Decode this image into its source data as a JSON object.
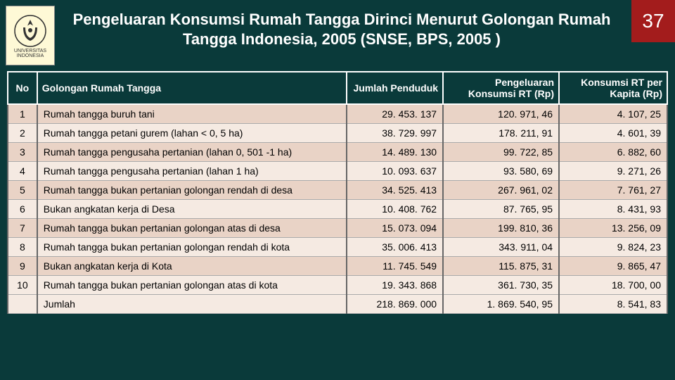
{
  "header": {
    "logo_top": "UNIVERSITAS",
    "logo_bottom": "INDONESIA",
    "title": "Pengeluaran Konsumsi Rumah Tangga Dirinci Menurut Golongan Rumah Tangga Indonesia, 2005 (SNSE, BPS, 2005 )",
    "page_number": "37"
  },
  "table": {
    "columns": [
      "No",
      "Golongan Rumah Tangga",
      "Jumlah Penduduk",
      "Pengeluaran Konsumsi RT (Rp)",
      "Konsumsi RT per Kapita (Rp)"
    ],
    "rows": [
      {
        "no": "1",
        "desc": "Rumah tangga buruh tani",
        "pop": "29. 453. 137",
        "exp": "120. 971, 46",
        "cap": "4. 107, 25"
      },
      {
        "no": "2",
        "desc": "Rumah tangga petani gurem (lahan < 0, 5 ha)",
        "pop": "38. 729. 997",
        "exp": "178. 211, 91",
        "cap": "4. 601, 39"
      },
      {
        "no": "3",
        "desc": "Rumah tangga pengusaha pertanian (lahan 0, 501 -1 ha)",
        "pop": "14. 489. 130",
        "exp": "99. 722, 85",
        "cap": "6. 882, 60"
      },
      {
        "no": "4",
        "desc": "Rumah tangga pengusaha pertanian (lahan 1 ha)",
        "pop": "10. 093. 637",
        "exp": "93. 580, 69",
        "cap": "9. 271, 26"
      },
      {
        "no": "5",
        "desc": "Rumah tangga bukan pertanian golongan rendah di desa",
        "pop": "34. 525. 413",
        "exp": "267. 961, 02",
        "cap": "7. 761, 27"
      },
      {
        "no": "6",
        "desc": "Bukan angkatan kerja di Desa",
        "pop": "10. 408. 762",
        "exp": "87. 765, 95",
        "cap": "8. 431, 93"
      },
      {
        "no": "7",
        "desc": "Rumah tangga bukan pertanian golongan atas di desa",
        "pop": "15. 073. 094",
        "exp": "199. 810, 36",
        "cap": "13. 256, 09"
      },
      {
        "no": "8",
        "desc": "Rumah tangga bukan pertanian golongan rendah di kota",
        "pop": "35. 006. 413",
        "exp": "343. 911, 04",
        "cap": "9. 824, 23"
      },
      {
        "no": "9",
        "desc": "Bukan angkatan kerja di Kota",
        "pop": "11. 745. 549",
        "exp": "115. 875, 31",
        "cap": "9. 865, 47"
      },
      {
        "no": "10",
        "desc": "Rumah tangga bukan pertanian golongan atas di kota",
        "pop": "19. 343. 868",
        "exp": "361. 730, 35",
        "cap": "18. 700, 00"
      },
      {
        "no": "",
        "desc": "Jumlah",
        "pop": "218. 869. 000",
        "exp": "1. 869. 540, 95",
        "cap": "8. 541, 83"
      }
    ],
    "header_bg": "#0a3a3a",
    "stripe_odd": "#e9d3c6",
    "stripe_even": "#f5eae2",
    "accent": "#a31c1c"
  }
}
